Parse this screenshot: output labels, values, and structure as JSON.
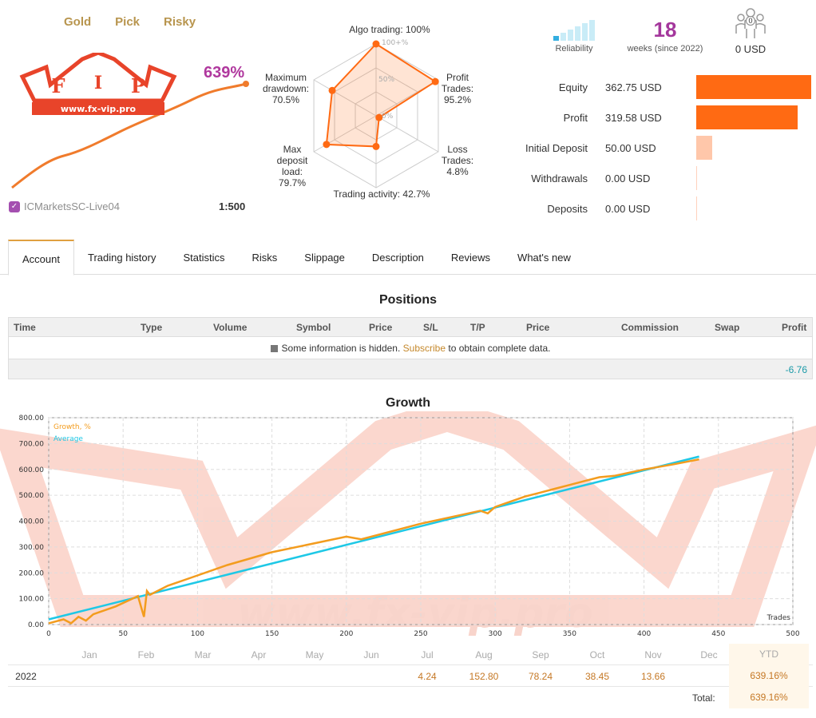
{
  "tags": [
    "Gold",
    "Pick",
    "Risky"
  ],
  "logo": {
    "text": "www.fx-vip.pro"
  },
  "gain": "639%",
  "server": "ICMarketsSC-Live04",
  "leverage": "1:500",
  "radar": {
    "algo": "Algo trading: 100%",
    "profit_trades": [
      "Profit",
      "Trades:",
      "95.2%"
    ],
    "loss_trades": [
      "Loss",
      "Trades:",
      "4.8%"
    ],
    "activity": "Trading activity: 42.7%",
    "max_load": [
      "Max",
      "deposit",
      "load:",
      "79.7%"
    ],
    "max_dd": [
      "Maximum",
      "drawdown:",
      "70.5%"
    ],
    "ring_100": "100+%",
    "ring_50": "50%",
    "ring_0": "0%",
    "values": {
      "algo": 100,
      "profit": 95.2,
      "loss": 4.8,
      "activity": 42.7,
      "load": 79.7,
      "drawdown": 70.5
    }
  },
  "reliability": {
    "label": "Reliability",
    "level_bars": 1,
    "total_bars": 6
  },
  "weeks": {
    "number": "18",
    "label": "weeks (since 2022)"
  },
  "subscribers": {
    "count": "0",
    "value": "0 USD"
  },
  "financials": [
    {
      "label": "Equity",
      "value": "362.75 USD",
      "amount": 362.75
    },
    {
      "label": "Profit",
      "value": "319.58 USD",
      "amount": 319.58
    },
    {
      "label": "Initial Deposit",
      "value": "50.00 USD",
      "amount": 50.0
    },
    {
      "label": "Withdrawals",
      "value": "0.00 USD",
      "amount": 0
    },
    {
      "label": "Deposits",
      "value": "0.00 USD",
      "amount": 0
    }
  ],
  "tabs": [
    "Account",
    "Trading history",
    "Statistics",
    "Risks",
    "Slippage",
    "Description",
    "Reviews",
    "What's new"
  ],
  "positions": {
    "title": "Positions",
    "columns": [
      "Time",
      "Type",
      "Volume",
      "Symbol",
      "Price",
      "S/L",
      "T/P",
      "Price",
      "Commission",
      "Swap",
      "Profit"
    ],
    "info_pre": "Some information is hidden.",
    "info_link": "Subscribe",
    "info_post": "to obtain complete data.",
    "total": "-6.76"
  },
  "growth": {
    "title": "Growth",
    "legend_growth": "Growth, %",
    "legend_average": "Average",
    "x_axis_label": "Trades"
  },
  "chart_data": {
    "type": "line",
    "title": "Growth",
    "xlabel": "Trades",
    "ylabel": "",
    "xlim": [
      0,
      500
    ],
    "ylim": [
      0,
      800
    ],
    "x_ticks": [
      "0",
      "50",
      "100",
      "150",
      "200",
      "250",
      "300",
      "350",
      "400",
      "450",
      "500"
    ],
    "y_ticks": [
      "0.00",
      "100.00",
      "200.00",
      "300.00",
      "400.00",
      "500.00",
      "600.00",
      "700.00",
      "800.00"
    ],
    "series": [
      {
        "name": "Growth, %",
        "color": "#f39c1e",
        "x": [
          0,
          10,
          15,
          20,
          25,
          30,
          45,
          60,
          64,
          66,
          68,
          80,
          100,
          120,
          150,
          200,
          210,
          250,
          290,
          295,
          300,
          320,
          330,
          340,
          350,
          360,
          370,
          380,
          400,
          420,
          437
        ],
        "y": [
          5,
          20,
          5,
          30,
          15,
          40,
          70,
          110,
          30,
          130,
          115,
          150,
          190,
          230,
          280,
          340,
          330,
          390,
          440,
          430,
          455,
          495,
          510,
          525,
          540,
          555,
          570,
          575,
          600,
          620,
          639
        ]
      },
      {
        "name": "Average",
        "color": "#1ec8e6",
        "x": [
          0,
          437
        ],
        "y": [
          20,
          650
        ]
      }
    ]
  },
  "monthly": {
    "headers": [
      "Jan",
      "Feb",
      "Mar",
      "Apr",
      "May",
      "Jun",
      "Jul",
      "Aug",
      "Sep",
      "Oct",
      "Nov",
      "Dec",
      "YTD"
    ],
    "year": "2022",
    "values": [
      "",
      "",
      "",
      "",
      "",
      "",
      "4.24",
      "152.80",
      "78.24",
      "38.45",
      "13.66",
      "",
      "639.16%"
    ],
    "total_label": "Total:",
    "total_value": "639.16%"
  },
  "colors": {
    "accent": "#ff6a13",
    "brand": "#b0389e",
    "gold": "#b8954e",
    "teal": "#1a9aa8"
  }
}
